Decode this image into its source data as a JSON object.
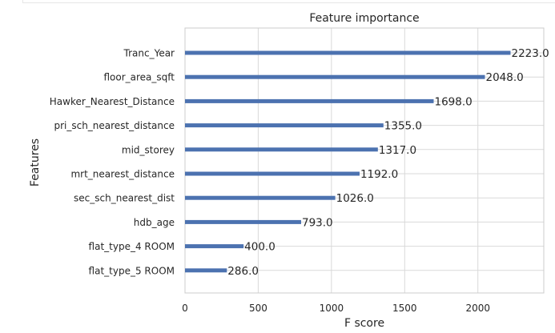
{
  "chart_data": {
    "type": "bar",
    "orientation": "horizontal",
    "title": "Feature importance",
    "xlabel": "F score",
    "ylabel": "Features",
    "xlim": [
      0,
      2450
    ],
    "xticks": [
      0,
      500,
      1000,
      1500,
      2000
    ],
    "grid": true,
    "bar_color": "#4c72b0",
    "categories": [
      "Tranc_Year",
      "floor_area_sqft",
      "Hawker_Nearest_Distance",
      "pri_sch_nearest_distance",
      "mid_storey",
      "mrt_nearest_distance",
      "sec_sch_nearest_dist",
      "hdb_age",
      "flat_type_4 ROOM",
      "flat_type_5 ROOM"
    ],
    "values": [
      2223,
      2048,
      1698,
      1355,
      1317,
      1192,
      1026,
      793,
      400,
      286
    ],
    "value_labels": [
      "2223.0",
      "2048.0",
      "1698.0",
      "1355.0",
      "1317.0",
      "1192.0",
      "1026.0",
      "793.0",
      "400.0",
      "286.0"
    ]
  }
}
